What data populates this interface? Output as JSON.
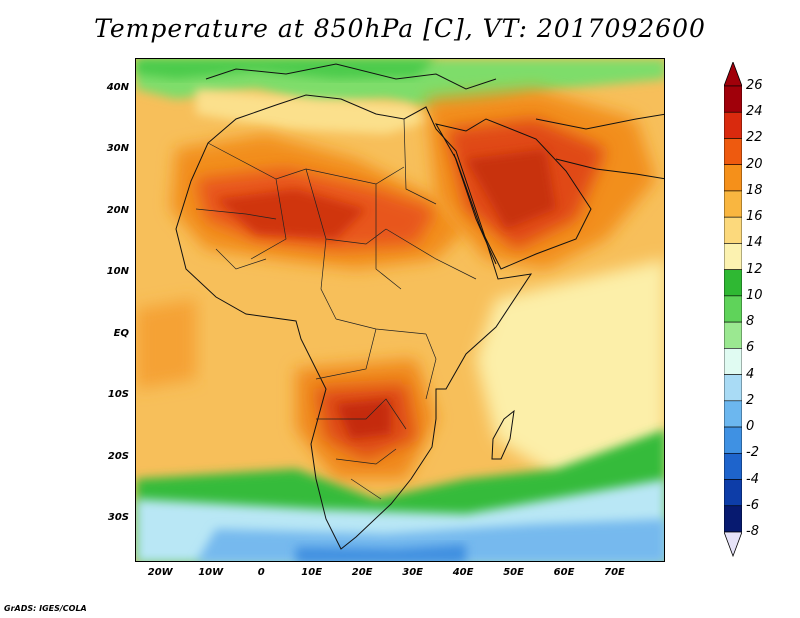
{
  "title": "Temperature at 850hPa [C], VT: 2017092600",
  "credit": "GrADS: IGES/COLA",
  "map": {
    "lon_range": [
      -25,
      80
    ],
    "lat_range": [
      -37,
      45
    ],
    "lat_ticks": [
      {
        "value": 40,
        "label": "40N"
      },
      {
        "value": 30,
        "label": "30N"
      },
      {
        "value": 20,
        "label": "20N"
      },
      {
        "value": 10,
        "label": "10N"
      },
      {
        "value": 0,
        "label": "EQ"
      },
      {
        "value": -10,
        "label": "10S"
      },
      {
        "value": -20,
        "label": "20S"
      },
      {
        "value": -30,
        "label": "30S"
      }
    ],
    "lon_ticks": [
      {
        "value": -20,
        "label": "20W"
      },
      {
        "value": -10,
        "label": "10W"
      },
      {
        "value": 0,
        "label": "0"
      },
      {
        "value": 10,
        "label": "10E"
      },
      {
        "value": 20,
        "label": "20E"
      },
      {
        "value": 30,
        "label": "30E"
      },
      {
        "value": 40,
        "label": "40E"
      },
      {
        "value": 50,
        "label": "50E"
      },
      {
        "value": 60,
        "label": "60E"
      },
      {
        "value": 70,
        "label": "70E"
      }
    ],
    "features": [
      "africa-coastline",
      "country-borders",
      "arabian-peninsula",
      "madagascar"
    ]
  },
  "colorbar": {
    "labels": [
      "26",
      "24",
      "22",
      "20",
      "18",
      "16",
      "14",
      "12",
      "10",
      "8",
      "6",
      "4",
      "2",
      "0",
      "-2",
      "-4",
      "-6",
      "-8"
    ],
    "colors": [
      "#a0000a",
      "#d92a0e",
      "#ee5a0f",
      "#f5901a",
      "#f9b640",
      "#fcd97c",
      "#fcf2b0",
      "#2fb833",
      "#5fd35a",
      "#9be891",
      "#e0fbf2",
      "#a9dbf5",
      "#6cb7ef",
      "#3f91e3",
      "#1e64cc",
      "#0d3da8",
      "#071a70"
    ],
    "over_color": "#a0000a",
    "under_color": "#e6e3f8"
  }
}
